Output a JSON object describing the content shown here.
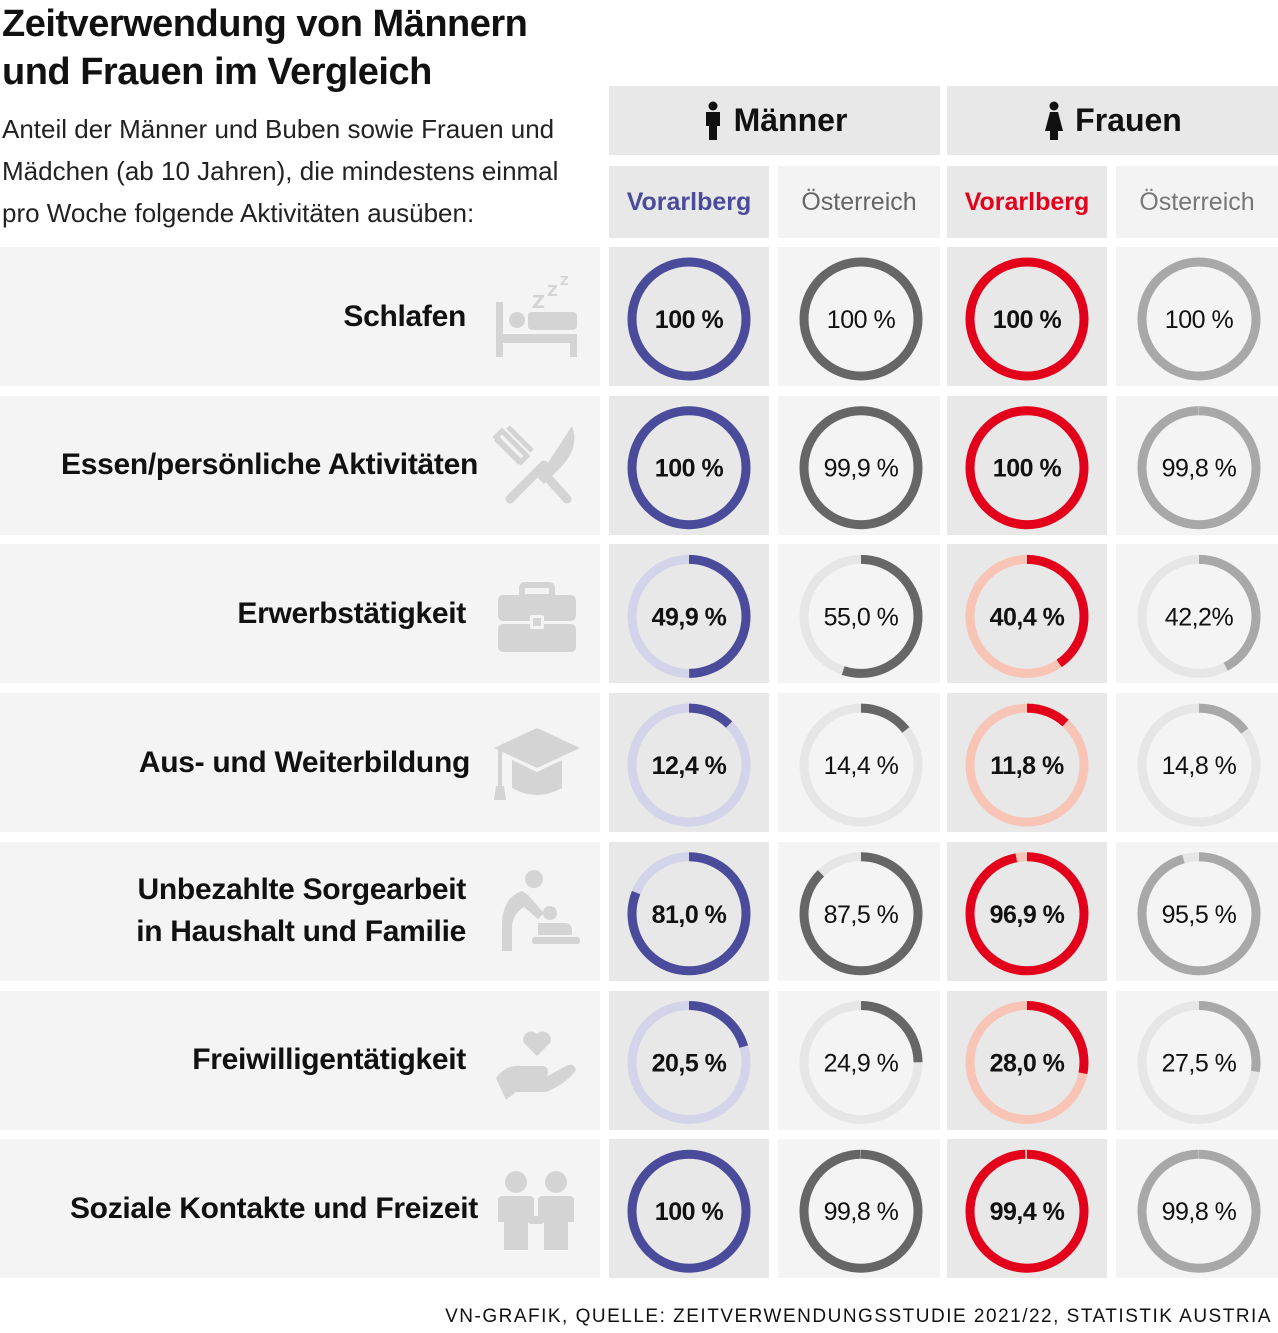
{
  "title_line1": "Zeitverwendung von Männern",
  "title_line2": "und Frauen im Vergleich",
  "subtitle_line1": "Anteil der Männer und Buben sowie Frauen und",
  "subtitle_line2": "Mädchen (ab 10 Jahren), die mindestens einmal",
  "subtitle_line3": "pro Woche folgende Aktivitäten ausüben:",
  "header": {
    "men": "Männer",
    "women": "Frauen",
    "men_vbg": "Vorarlberg",
    "men_at": "Österreich",
    "women_vbg": "Vorarlberg",
    "women_at": "Österreich"
  },
  "colors": {
    "men_vbg": "#4b4b9c",
    "men_vbg_track": "#d3d3ea",
    "men_at": "#666666",
    "women_vbg": "#e3001b",
    "women_vbg_track": "#f8c4b5",
    "women_at": "#a8a8a8",
    "track_grey": "#e6e6e6"
  },
  "footer": "VN-GRAFIK, QUELLE: ZEITVERWENDUNGSSTUDIE 2021/22, STATISTIK AUSTRIA",
  "chart_data": {
    "type": "table",
    "title": "Zeitverwendung von Männern und Frauen im Vergleich",
    "unit": "%",
    "columns": [
      "Männer Vorarlberg",
      "Männer Österreich",
      "Frauen Vorarlberg",
      "Frauen Österreich"
    ],
    "rows": [
      {
        "label_lines": [
          "Schlafen"
        ],
        "icon": "bed-icon",
        "values": [
          100,
          100,
          100,
          100
        ],
        "labels": [
          "100 %",
          "100 %",
          "100 %",
          "100 %"
        ]
      },
      {
        "label_lines": [
          "Essen/persönliche Aktivitäten"
        ],
        "icon": "fork-knife-icon",
        "values": [
          100,
          99.9,
          100,
          99.8
        ],
        "labels": [
          "100 %",
          "99,9 %",
          "100 %",
          "99,8 %"
        ]
      },
      {
        "label_lines": [
          "Erwerbstätigkeit"
        ],
        "icon": "briefcase-icon",
        "values": [
          49.9,
          55.0,
          40.4,
          42.2
        ],
        "labels": [
          "49,9 %",
          "55,0 %",
          "40,4 %",
          "42,2%"
        ]
      },
      {
        "label_lines": [
          "Aus- und Weiterbildung"
        ],
        "icon": "graduation-cap-icon",
        "values": [
          12.4,
          14.4,
          11.8,
          14.8
        ],
        "labels": [
          "12,4 %",
          "14,4 %",
          "11,8 %",
          "14,8 %"
        ]
      },
      {
        "label_lines": [
          "Unbezahlte Sorgearbeit",
          "in Haushalt und Familie"
        ],
        "icon": "caregiving-icon",
        "values": [
          81.0,
          87.5,
          96.9,
          95.5
        ],
        "labels": [
          "81,0 %",
          "87,5 %",
          "96,9 %",
          "95,5 %"
        ]
      },
      {
        "label_lines": [
          "Freiwilligentätigkeit"
        ],
        "icon": "hand-heart-icon",
        "values": [
          20.5,
          24.9,
          28.0,
          27.5
        ],
        "labels": [
          "20,5 %",
          "24,9 %",
          "28,0 %",
          "27,5 %"
        ]
      },
      {
        "label_lines": [
          "Soziale Kontakte und Freizeit"
        ],
        "icon": "people-icon",
        "values": [
          100,
          99.8,
          99.4,
          99.8
        ],
        "labels": [
          "100 %",
          "99,8 %",
          "99,4 %",
          "99,8 %"
        ]
      }
    ]
  }
}
